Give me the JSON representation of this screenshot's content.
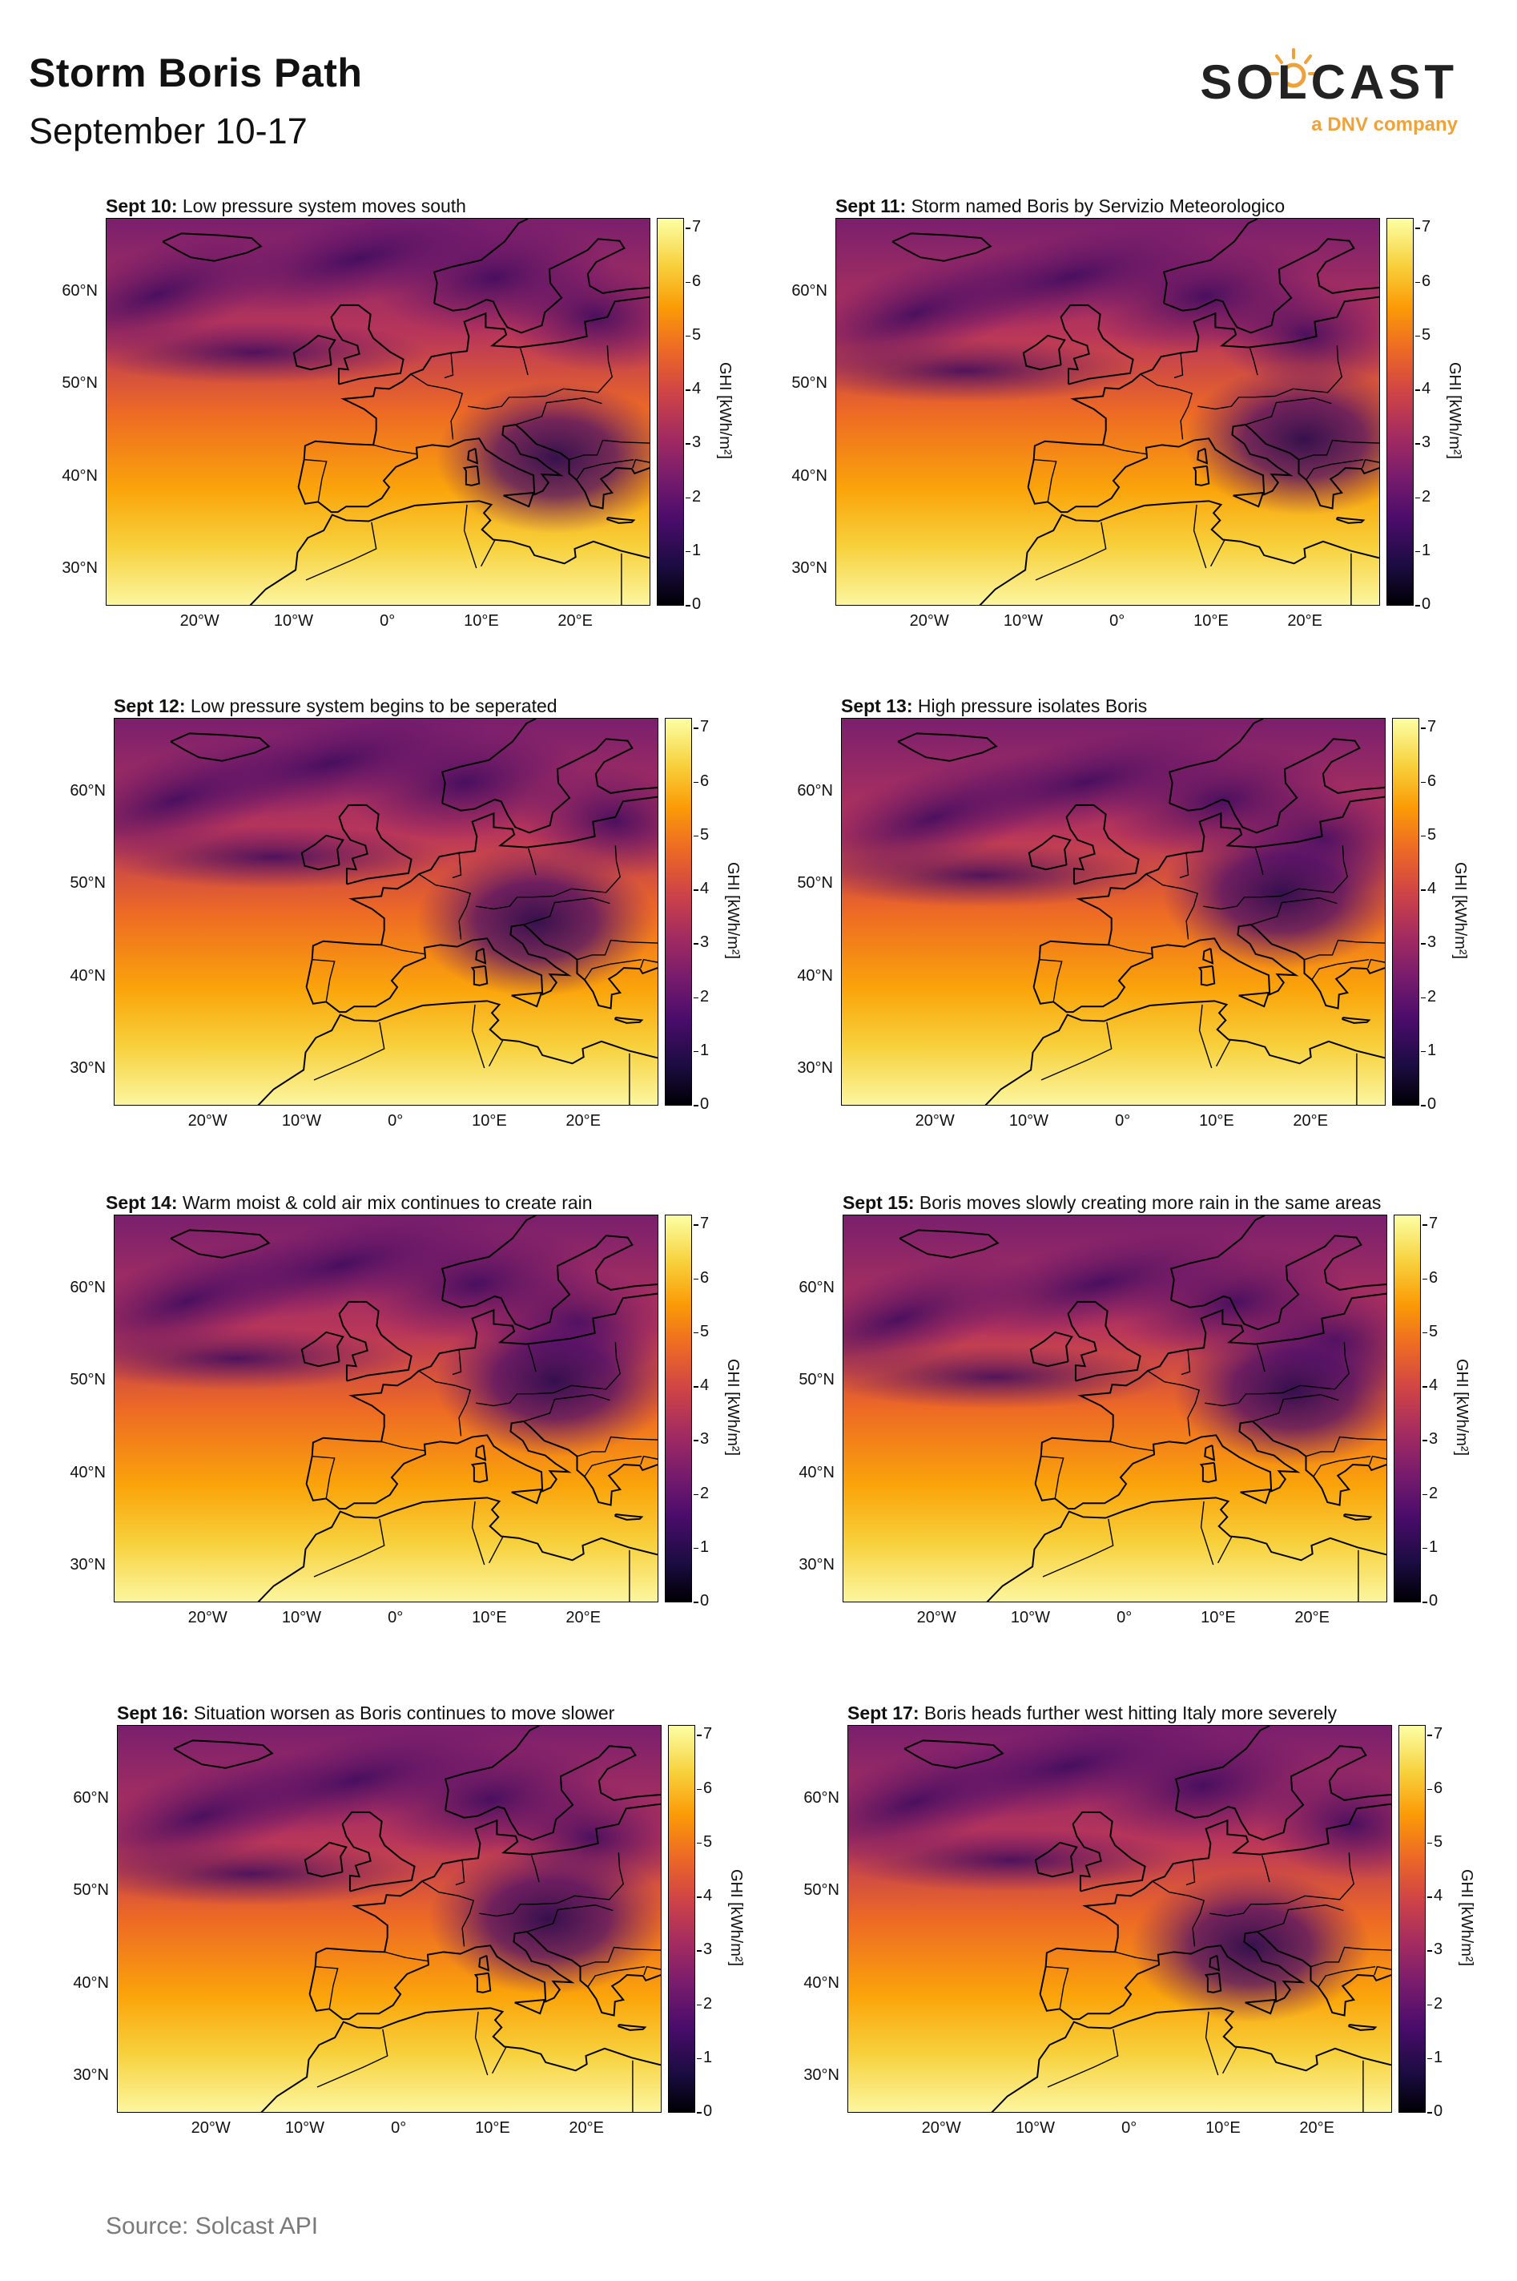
{
  "header": {
    "title": "Storm Boris Path",
    "subtitle": "September 10-17"
  },
  "logo": {
    "wordmark": "SOLCAST",
    "tagline": "a DNV company",
    "accent_color": "#f0a23a"
  },
  "footer": {
    "source": "Source: Solcast API"
  },
  "axes": {
    "lat_ticks": [
      "60°N",
      "50°N",
      "40°N",
      "30°N"
    ],
    "lon_ticks": [
      "20°W",
      "10°W",
      "0°",
      "10°E",
      "20°E"
    ]
  },
  "colorbar": {
    "label": "GHI [kWh/m²]",
    "ticks": [
      "7",
      "6",
      "5",
      "4",
      "3",
      "2",
      "1",
      "0"
    ],
    "colormap": "inferno",
    "range": [
      0,
      7.2
    ]
  },
  "panels": [
    {
      "date": "Sept 10:",
      "caption": "Low pressure system moves south",
      "storm": [
        18,
        42
      ]
    },
    {
      "date": "Sept 11:",
      "caption": "Storm named Boris by Servizio Meteorologico",
      "storm": [
        20,
        44
      ]
    },
    {
      "date": "Sept 12:",
      "caption": "Low pressure system begins to be seperated",
      "storm": [
        15,
        46
      ]
    },
    {
      "date": "Sept 13:",
      "caption": "High pressure isolates Boris",
      "storm": [
        17,
        49
      ]
    },
    {
      "date": "Sept 14:",
      "caption": "Warm moist & cold air mix continues to create rain",
      "storm": [
        17,
        50
      ]
    },
    {
      "date": "Sept 15:",
      "caption": "Boris moves slowly creating more rain in the same areas",
      "storm": [
        18,
        49
      ]
    },
    {
      "date": "Sept 16:",
      "caption": "Situation worsen as Boris continues to move slower",
      "storm": [
        16,
        47
      ]
    },
    {
      "date": "Sept 17:",
      "caption": "Boris heads further west hitting Italy more severely",
      "storm": [
        13,
        44
      ]
    }
  ]
}
